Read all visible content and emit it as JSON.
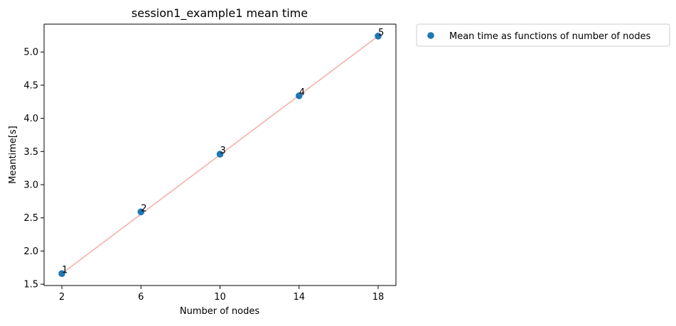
{
  "chart_data": {
    "type": "scatter",
    "title": "session1_example1 mean time",
    "xlabel": "Number of nodes",
    "ylabel": "Meantime[s]",
    "x": [
      2,
      6,
      10,
      14,
      18
    ],
    "y": [
      1.66,
      2.59,
      3.46,
      4.34,
      5.24
    ],
    "point_labels": [
      "1",
      "2",
      "3",
      "4",
      "5"
    ],
    "xlim": [
      1.1,
      18.9
    ],
    "ylim": [
      1.48,
      5.42
    ],
    "xticks": [
      "2",
      "6",
      "10",
      "14",
      "18"
    ],
    "xtick_values": [
      2,
      6,
      10,
      14,
      18
    ],
    "yticks": [
      "1.5",
      "2.0",
      "2.5",
      "3.0",
      "3.5",
      "4.0",
      "4.5",
      "5.0"
    ],
    "ytick_values": [
      1.5,
      2.0,
      2.5,
      3.0,
      3.5,
      4.0,
      4.5,
      5.0
    ],
    "grid": false,
    "legend_position": "outside-right-top",
    "series": [
      {
        "name": "Mean time as functions of number of nodes",
        "kind": "scatter",
        "color": "#1f77b4"
      }
    ],
    "fit_line": {
      "kind": "line",
      "color": "#f8b1a8",
      "x": [
        2,
        18
      ],
      "y": [
        1.66,
        5.24
      ]
    }
  }
}
